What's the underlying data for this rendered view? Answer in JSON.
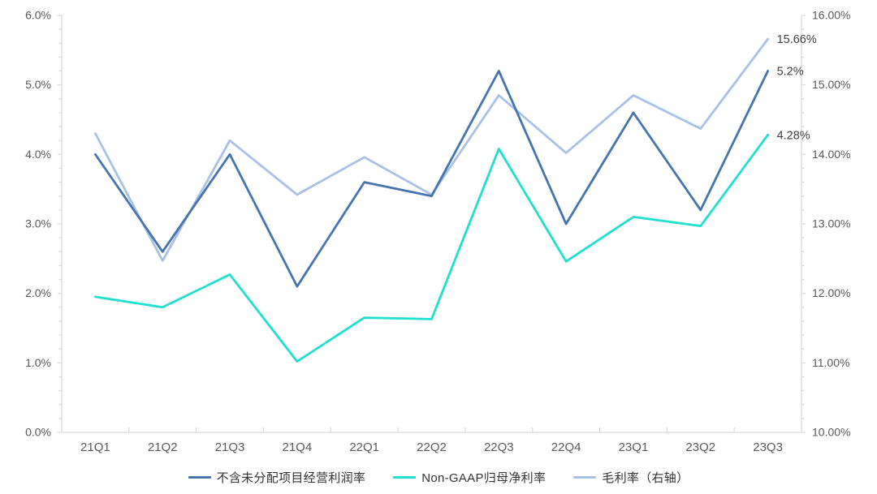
{
  "chart_data": {
    "type": "line",
    "title": "",
    "xlabel": "",
    "ylabel": "",
    "grid": false,
    "legend_position": "bottom",
    "categories": [
      "21Q1",
      "21Q2",
      "21Q3",
      "21Q4",
      "22Q1",
      "22Q2",
      "22Q3",
      "22Q4",
      "23Q1",
      "23Q2",
      "23Q3"
    ],
    "series": [
      {
        "name": "不含未分配项目经营利润率",
        "axis": "left",
        "color": "#4674AE",
        "values": [
          4.0,
          2.6,
          4.0,
          2.1,
          3.6,
          3.4,
          5.2,
          3.0,
          4.6,
          3.2,
          5.2
        ],
        "end_label": "5.2%"
      },
      {
        "name": "Non-GAAP归母净利率",
        "axis": "left",
        "color": "#1FE0CE",
        "values": [
          1.95,
          1.8,
          2.27,
          1.02,
          1.65,
          1.63,
          4.08,
          2.46,
          3.1,
          2.97,
          4.28
        ],
        "end_label": "4.28%"
      },
      {
        "name": "毛利率（右轴）",
        "axis": "right",
        "color": "#A8C0E4",
        "values": [
          14.3,
          12.47,
          14.2,
          13.42,
          13.96,
          13.42,
          14.85,
          14.02,
          14.85,
          14.37,
          15.66
        ],
        "end_label": "15.66%"
      }
    ],
    "left_axis": {
      "min": 0,
      "max": 6,
      "major_step": 1,
      "minor_step": 0.2,
      "tick_labels": [
        "0.0%",
        "1.0%",
        "2.0%",
        "3.0%",
        "4.0%",
        "5.0%",
        "6.0%"
      ]
    },
    "right_axis": {
      "min": 10,
      "max": 16,
      "major_step": 1,
      "minor_step": 0.2,
      "tick_labels": [
        "10.00%",
        "11.00%",
        "12.00%",
        "13.00%",
        "14.00%",
        "15.00%",
        "16.00%"
      ]
    }
  },
  "colors": {
    "background": "#FFFFFF",
    "axis_line": "#D9D9D9",
    "axis_text": "#595959",
    "data_label_text": "#3F3F3F"
  }
}
